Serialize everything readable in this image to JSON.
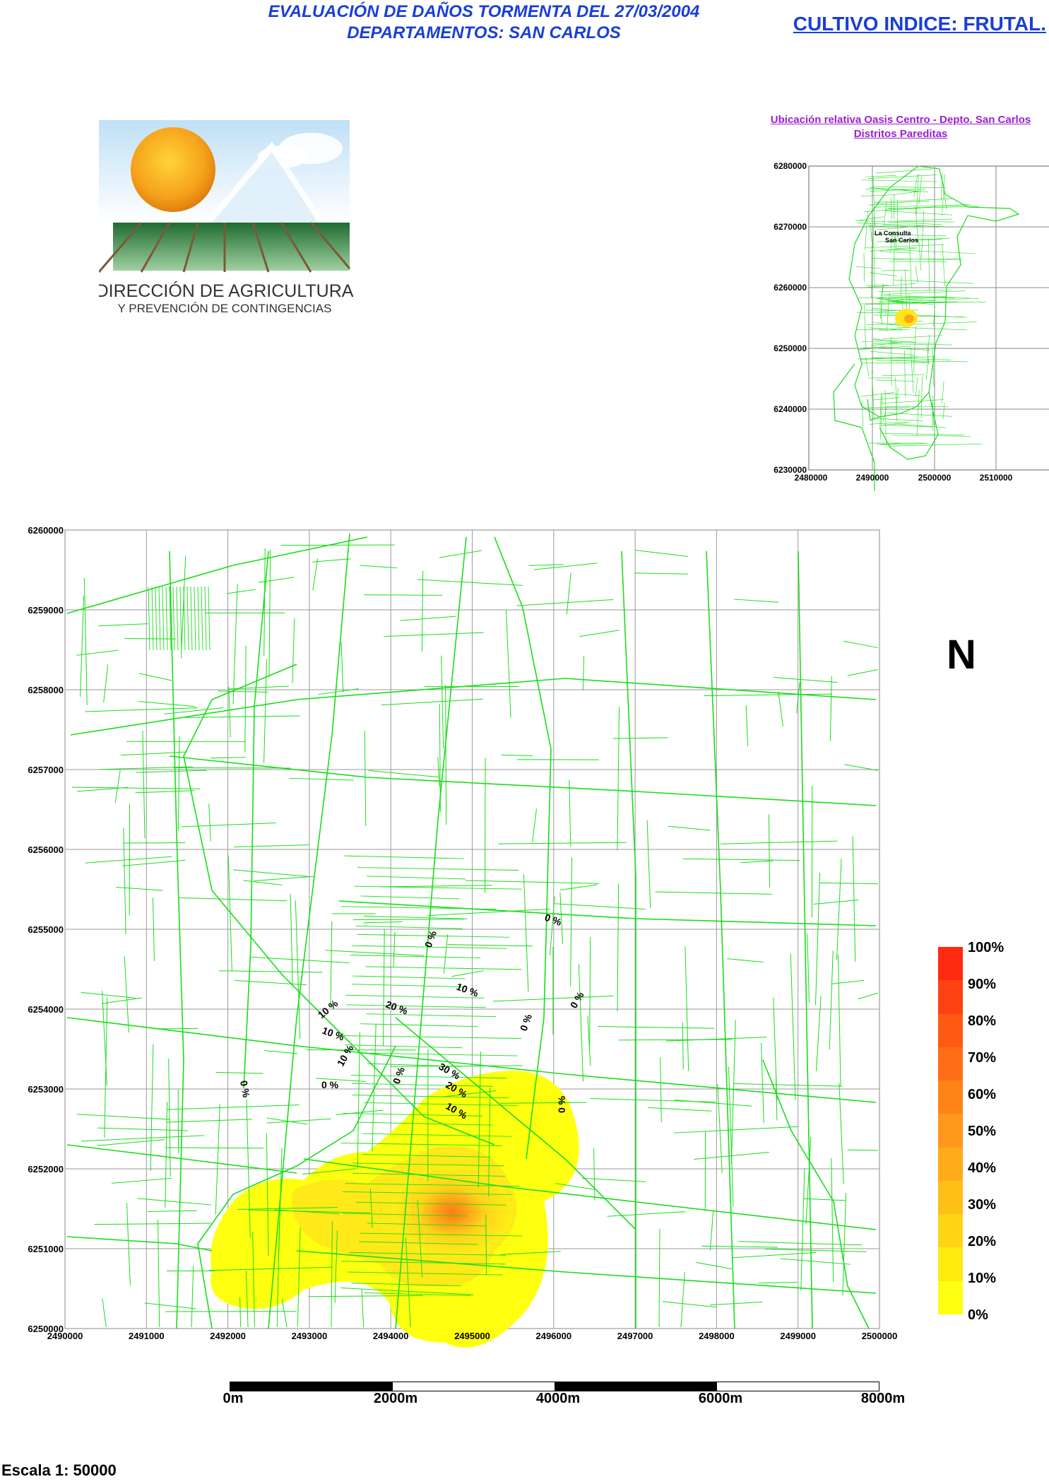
{
  "header": {
    "title_line1": "EVALUACIÓN DE DAÑOS TORMENTA DEL 27/03/2004",
    "title_line2": "DEPARTAMENTOS: SAN CARLOS",
    "crop_index": "CULTIVO INDICE: FRUTAL."
  },
  "logo": {
    "line1": "DIRECCIÓN DE AGRICULTURA",
    "line2": "Y PREVENCIÓN DE CONTINGENCIAS"
  },
  "inset": {
    "title_line1": "Ubicación relativa Oasis Centro - Depto. San Carlos",
    "title_line2": "Distritos  Pareditas",
    "y_ticks": [
      "6280000",
      "6270000",
      "6260000",
      "6250000",
      "6240000",
      "6230000"
    ],
    "x_ticks": [
      "2480000",
      "2490000",
      "2500000",
      "2510000"
    ],
    "place_label_1": "La Consulta",
    "place_label_2": "San Carlos"
  },
  "main_map": {
    "y_ticks": [
      "6260000",
      "6259000",
      "6258000",
      "6257000",
      "6256000",
      "6255000",
      "6254000",
      "6253000",
      "6252000",
      "6251000",
      "6250000"
    ],
    "x_ticks": [
      "2490000",
      "2491000",
      "2492000",
      "2493000",
      "2494000",
      "2495000",
      "2496000",
      "2497000",
      "2498000",
      "2499000",
      "2500000"
    ],
    "contour_labels": [
      {
        "text": "0 %"
      },
      {
        "text": "0 %"
      },
      {
        "text": "10 %"
      },
      {
        "text": "0 %"
      },
      {
        "text": "10 %"
      },
      {
        "text": "20 %"
      },
      {
        "text": "10 %"
      },
      {
        "text": "0 %"
      },
      {
        "text": "10 %"
      },
      {
        "text": "30 %"
      },
      {
        "text": "20 %"
      },
      {
        "text": "0 %"
      },
      {
        "text": "10 %"
      },
      {
        "text": "0 %"
      },
      {
        "text": "0 %"
      },
      {
        "text": "0 %"
      }
    ],
    "north_label": "N"
  },
  "legend": {
    "labels": [
      "100%",
      "90%",
      "80%",
      "70%",
      "60%",
      "50%",
      "40%",
      "30%",
      "20%",
      "10%",
      "0%"
    ],
    "colors": [
      "#ff2a10",
      "#ff4212",
      "#ff5a14",
      "#ff6e16",
      "#ff8418",
      "#ff981a",
      "#ffac18",
      "#ffc016",
      "#ffd414",
      "#ffea10",
      "#ffff10"
    ]
  },
  "scale_bar": {
    "labels": [
      "0m",
      "2000m",
      "4000m",
      "6000m",
      "8000m"
    ]
  },
  "escala": "Escala 1: 50000",
  "colors": {
    "title_blue": "#1a3fd6",
    "inset_purple": "#9c1fd0",
    "parcel_green": "#19dd19"
  }
}
